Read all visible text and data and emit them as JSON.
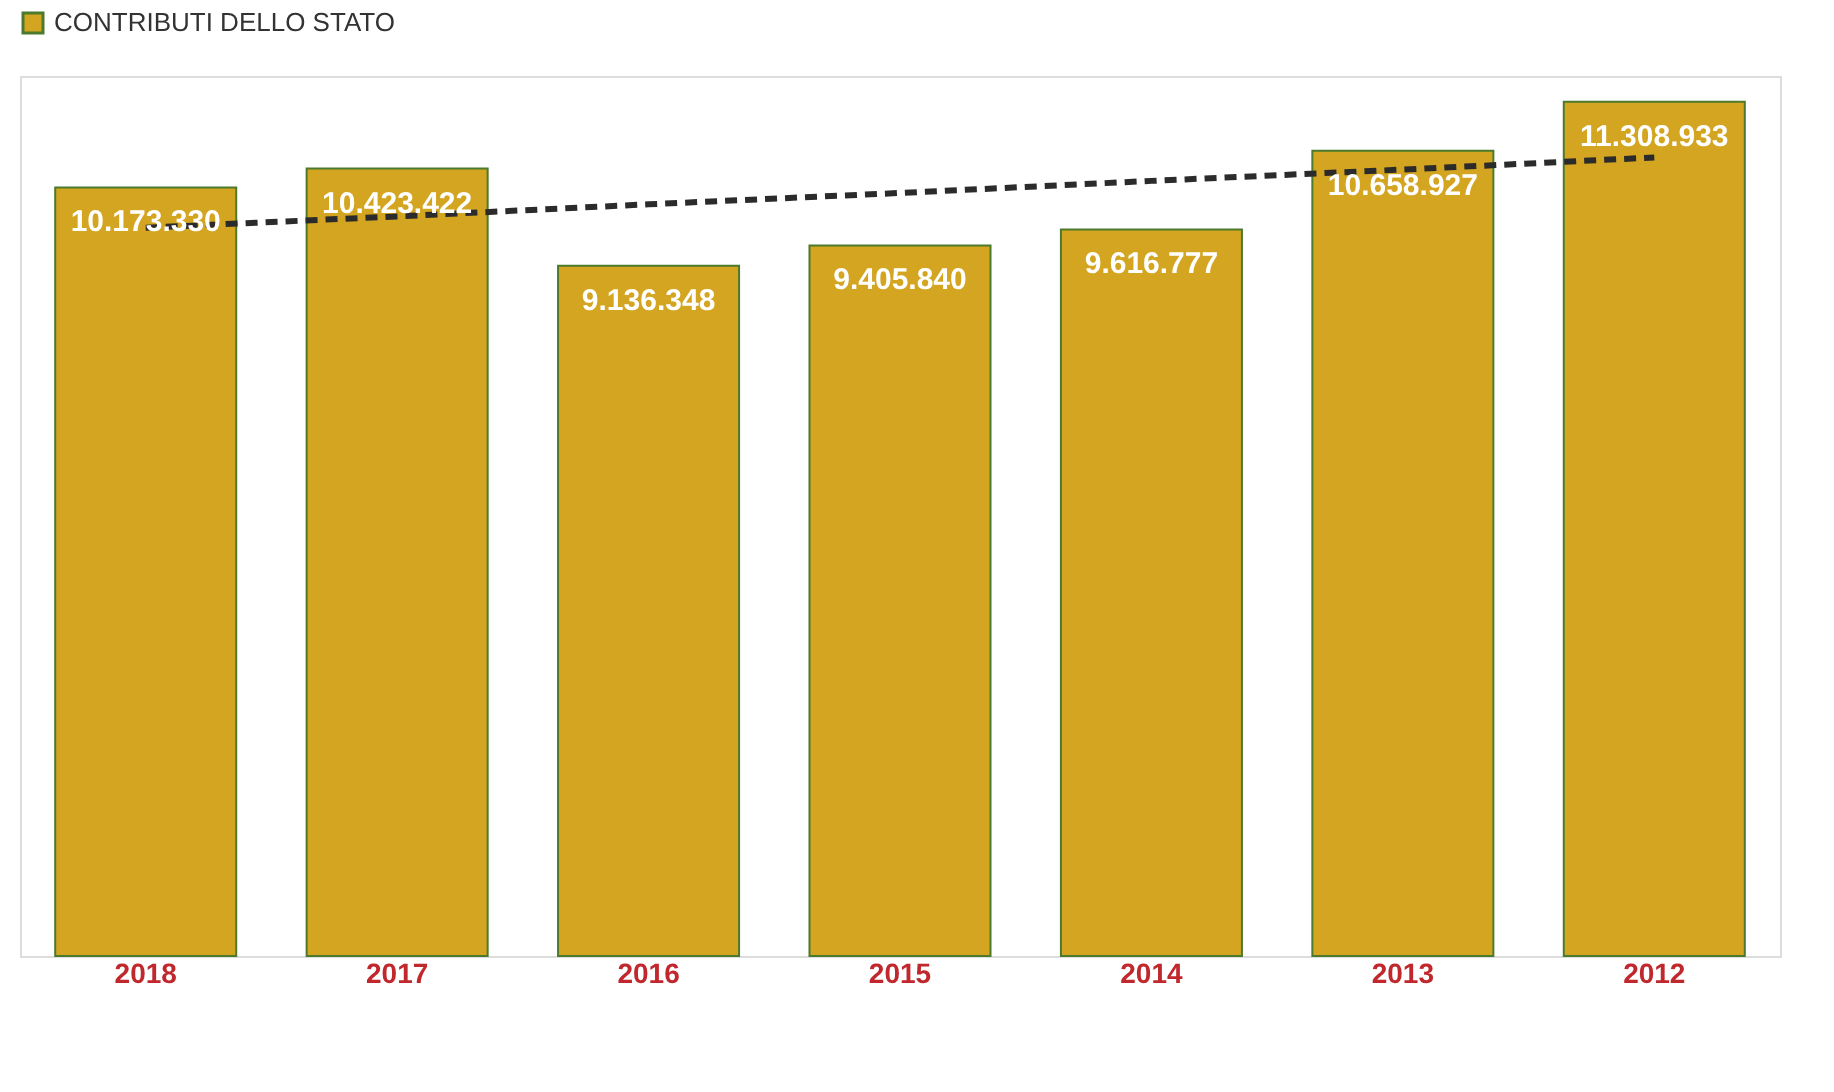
{
  "chart_data": {
    "type": "bar",
    "categories": [
      "2018",
      "2017",
      "2016",
      "2015",
      "2014",
      "2013",
      "2012"
    ],
    "series": [
      {
        "name": "CONTRIBUTI DELLO STATO",
        "color": "#d4a520",
        "values": [
          10173330,
          10423422,
          9136348,
          9405840,
          9616777,
          10658927,
          11308933
        ],
        "value_labels": [
          "10.173.330",
          "10.423.422",
          "9.136.348",
          "9.405.840",
          "9.616.777",
          "10.658.927",
          "11.308.933"
        ]
      },
      {
        "type": "line",
        "color": "#2b2b2b",
        "line_style": "dashed",
        "values": [
          9640000,
          9790000,
          9950000,
          10100000,
          10260000,
          10410000,
          10570000
        ]
      }
    ],
    "legend": "top left",
    "tick_labels": "x"
  }
}
